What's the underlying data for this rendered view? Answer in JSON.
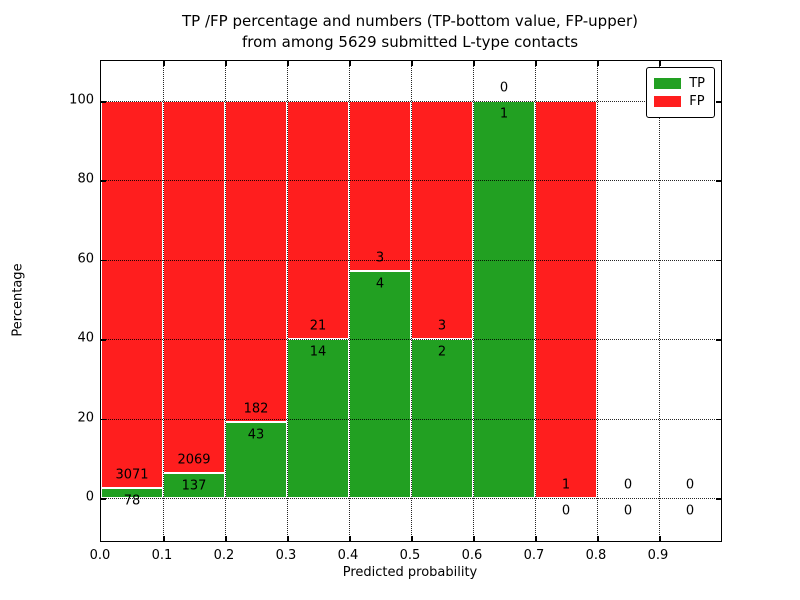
{
  "title": {
    "line1": "TP /FP percentage and numbers (TP-bottom value, FP-upper)",
    "line2": "from among 5629 submitted L-type contacts"
  },
  "axes": {
    "xlabel": "Predicted probability",
    "ylabel": "Percentage"
  },
  "legend": {
    "position": "upper right",
    "items": [
      {
        "label": "TP",
        "color": "#22a022"
      },
      {
        "label": "FP",
        "color": "#ff1e1e"
      }
    ]
  },
  "colors": {
    "tp_green": "#22a022",
    "fp_red": "#ff1e1e",
    "grid": "#000000",
    "background": "#ffffff"
  },
  "chart_data": {
    "type": "bar",
    "stacked": true,
    "title": "TP /FP percentage and numbers (TP-bottom value, FP-upper) from among 5629 submitted L-type contacts",
    "xlabel": "Predicted probability",
    "ylabel": "Percentage",
    "xlim": [
      0.0,
      1.0
    ],
    "ylim": [
      -11,
      110
    ],
    "grid": "dotted, drawn above bars",
    "legend_position": "upper right",
    "bin_width": 0.1,
    "x_tick_labels": [
      "0.0",
      "0.1",
      "0.2",
      "0.3",
      "0.4",
      "0.5",
      "0.6",
      "0.7",
      "0.8",
      "0.9"
    ],
    "y_ticks": [
      0,
      20,
      40,
      60,
      80,
      100
    ],
    "total_contacts": 5629,
    "bins": [
      {
        "x_start": 0.0,
        "x_end": 0.1,
        "tp_count": 78,
        "fp_count": 3071,
        "tp_pct": 2.5,
        "fp_pct": 97.5,
        "has_bar": true
      },
      {
        "x_start": 0.1,
        "x_end": 0.2,
        "tp_count": 137,
        "fp_count": 2069,
        "tp_pct": 6.2,
        "fp_pct": 93.8,
        "has_bar": true
      },
      {
        "x_start": 0.2,
        "x_end": 0.3,
        "tp_count": 43,
        "fp_count": 182,
        "tp_pct": 19.1,
        "fp_pct": 80.9,
        "has_bar": true
      },
      {
        "x_start": 0.3,
        "x_end": 0.4,
        "tp_count": 14,
        "fp_count": 21,
        "tp_pct": 40.0,
        "fp_pct": 60.0,
        "has_bar": true
      },
      {
        "x_start": 0.4,
        "x_end": 0.5,
        "tp_count": 4,
        "fp_count": 3,
        "tp_pct": 57.1,
        "fp_pct": 42.9,
        "has_bar": true
      },
      {
        "x_start": 0.5,
        "x_end": 0.6,
        "tp_count": 2,
        "fp_count": 3,
        "tp_pct": 40.0,
        "fp_pct": 60.0,
        "has_bar": true
      },
      {
        "x_start": 0.6,
        "x_end": 0.7,
        "tp_count": 1,
        "fp_count": 0,
        "tp_pct": 100.0,
        "fp_pct": 0.0,
        "has_bar": true
      },
      {
        "x_start": 0.7,
        "x_end": 0.8,
        "tp_count": 0,
        "fp_count": 1,
        "tp_pct": 0.0,
        "fp_pct": 100.0,
        "has_bar": true
      },
      {
        "x_start": 0.8,
        "x_end": 0.9,
        "tp_count": 0,
        "fp_count": 0,
        "tp_pct": null,
        "fp_pct": null,
        "has_bar": false
      },
      {
        "x_start": 0.9,
        "x_end": 1.0,
        "tp_count": 0,
        "fp_count": 0,
        "tp_pct": null,
        "fp_pct": null,
        "has_bar": false
      }
    ],
    "series": [
      {
        "name": "TP",
        "color": "#22a022",
        "values_pct": [
          2.5,
          6.2,
          19.1,
          40.0,
          57.1,
          40.0,
          100.0,
          0.0,
          null,
          null
        ]
      },
      {
        "name": "FP",
        "color": "#ff1e1e",
        "values_pct": [
          97.5,
          93.8,
          80.9,
          60.0,
          42.9,
          60.0,
          0.0,
          100.0,
          null,
          null
        ]
      }
    ]
  }
}
